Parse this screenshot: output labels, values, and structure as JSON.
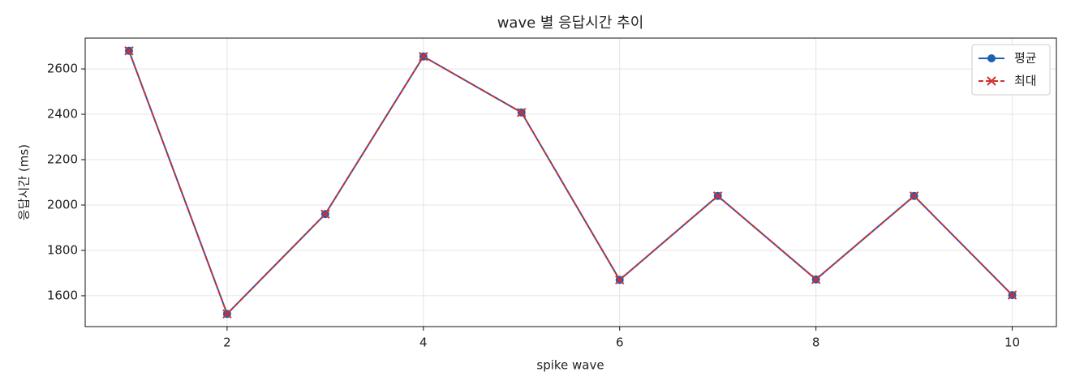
{
  "chart_data": {
    "type": "line",
    "title": "wave 별 응답시간 추이",
    "xlabel": "spike wave",
    "ylabel": "응답시간 (ms)",
    "x": [
      1,
      2,
      3,
      4,
      5,
      6,
      7,
      8,
      9,
      10
    ],
    "series": [
      {
        "name": "평균",
        "color": "#1f5fb4",
        "marker": "circle",
        "dash": false,
        "values": [
          2680,
          1520,
          1960,
          2655,
          2408,
          1670,
          2040,
          1672,
          2040,
          1603
        ]
      },
      {
        "name": "최대",
        "color": "#d03030",
        "marker": "x",
        "dash": true,
        "values": [
          2680,
          1520,
          1960,
          2655,
          2408,
          1670,
          2040,
          1672,
          2040,
          1603
        ]
      }
    ],
    "xlim": [
      0.554,
      10.45
    ],
    "xticks": [
      2,
      4,
      6,
      8,
      10
    ],
    "ylim": [
      1464,
      2736
    ],
    "yticks": [
      1600,
      1800,
      2000,
      2200,
      2400,
      2600
    ],
    "grid": true,
    "legend": "upper right"
  }
}
